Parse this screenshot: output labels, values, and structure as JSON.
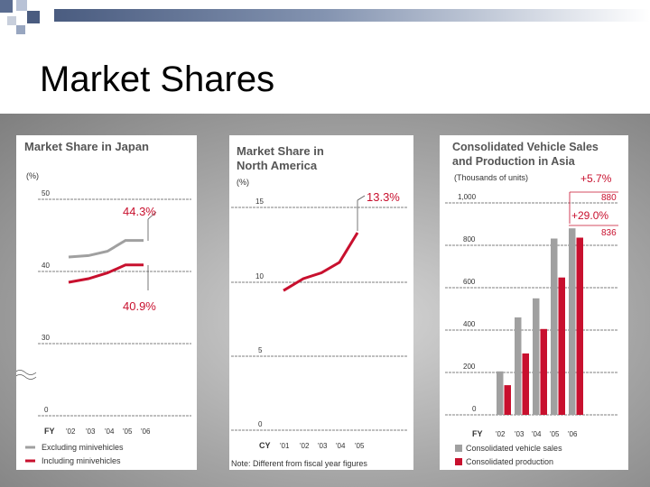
{
  "slide": {
    "title": "Market Shares"
  },
  "colors": {
    "gray": "#a0a0a0",
    "red": "#c8102e",
    "title": "#555555",
    "topbar": "#4a5c80"
  },
  "chart_data": [
    {
      "type": "line",
      "title": "Market Share in Japan",
      "ylabel": "(%)",
      "xlabel_prefix": "FY",
      "categories": [
        "'02",
        "'03",
        "'04",
        "'05",
        "'06"
      ],
      "yticks": [
        "50",
        "40",
        "30",
        "0"
      ],
      "ylim": [
        0,
        50
      ],
      "y_axis_break": true,
      "series": [
        {
          "name": "Excluding minivehicles",
          "color": "#a0a0a0",
          "values": [
            42.0,
            42.2,
            42.8,
            44.3,
            44.3
          ]
        },
        {
          "name": "Including minivehicles",
          "color": "#c8102e",
          "values": [
            38.5,
            39.0,
            39.8,
            40.9,
            40.9
          ]
        }
      ],
      "annotations": [
        "44.3%",
        "40.9%"
      ]
    },
    {
      "type": "line",
      "title_lines": [
        "Market Share in",
        "North America"
      ],
      "ylabel": "(%)",
      "xlabel_prefix": "CY",
      "categories": [
        "'01",
        "'02",
        "'03",
        "'04",
        "'05"
      ],
      "yticks": [
        "15",
        "10",
        "5",
        "0"
      ],
      "ylim": [
        0,
        15
      ],
      "series": [
        {
          "name": "Market share",
          "color": "#c8102e",
          "values": [
            9.4,
            10.2,
            10.6,
            11.3,
            13.3
          ]
        }
      ],
      "annotations": [
        "13.3%"
      ],
      "note": "Note: Different from fiscal year figures"
    },
    {
      "type": "bar",
      "title_lines": [
        "Consolidated Vehicle Sales",
        "and Production in Asia"
      ],
      "ylabel": "(Thousands of units)",
      "xlabel_prefix": "FY",
      "categories": [
        "'02",
        "'03",
        "'04",
        "'05",
        "'06"
      ],
      "yticks": [
        "1,000",
        "800",
        "600",
        "400",
        "200",
        "0"
      ],
      "ylim": [
        0,
        1000
      ],
      "series": [
        {
          "name": "Consolidated vehicle sales",
          "color": "#a0a0a0",
          "values": [
            205,
            460,
            550,
            832,
            880
          ]
        },
        {
          "name": "Consolidated production",
          "color": "#c8102e",
          "values": [
            140,
            290,
            405,
            648,
            836
          ]
        }
      ],
      "annotations": [
        "+5.7%",
        "880",
        "+29.0%",
        "836"
      ]
    }
  ]
}
